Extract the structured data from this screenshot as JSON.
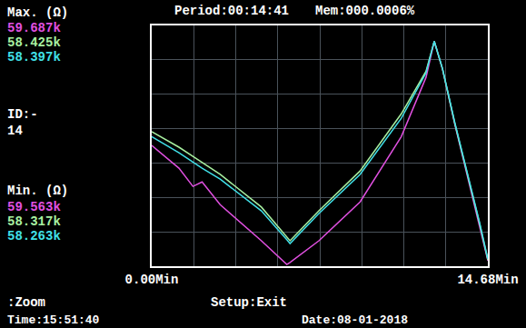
{
  "chart_data": {
    "type": "line",
    "title": "Period:00:14:41",
    "subtitle": "Mem:000.0006%",
    "max_label": "Max. (Ω)",
    "min_label": "Min. (Ω)",
    "annotations": [
      "ID:-",
      "14",
      ":Zoom",
      "Setup:Exit",
      "Time:15:51:40",
      "Date:08-01-2018"
    ],
    "x": [
      0,
      1.19,
      1.8,
      2.2,
      2.99,
      4.79,
      5.9,
      6.04,
      7.3,
      9.1,
      10.9,
      11.98,
      12.34,
      12.7,
      13.24,
      13.78,
      14.32,
      14.68
    ],
    "series": [
      {
        "color": "#e050e0",
        "max": "59.687k",
        "min": "59.563k",
        "values": [
          3.51,
          2.85,
          2.32,
          2.45,
          1.79,
          0.74,
          0.05,
          0.11,
          0.74,
          1.87,
          3.77,
          5.49,
          6.54,
          5.73,
          4.12,
          2.66,
          1.21,
          0.16
        ]
      },
      {
        "color": "#a8f0a0",
        "max": "58.425k",
        "min": "58.317k",
        "values": [
          3.91,
          3.46,
          3.19,
          3.01,
          2.67,
          1.72,
          0.84,
          0.74,
          1.61,
          2.77,
          4.43,
          5.67,
          6.54,
          5.73,
          4.14,
          2.69,
          1.24,
          0.18
        ]
      },
      {
        "color": "#40e0e8",
        "max": "58.397k",
        "min": "58.263k",
        "values": [
          3.77,
          3.3,
          3.03,
          2.85,
          2.53,
          1.61,
          0.77,
          0.66,
          1.53,
          2.67,
          4.3,
          5.62,
          6.54,
          5.75,
          4.17,
          2.72,
          1.27,
          0.21
        ]
      }
    ],
    "xlim": [
      0,
      14.68
    ],
    "xticks": [
      {
        "value": 0,
        "label": "0.00Min"
      },
      {
        "value": 14.68,
        "label": "14.68Min"
      }
    ],
    "ylim": [
      0,
      7
    ],
    "yticks": [
      0,
      1,
      2,
      3,
      4,
      5,
      6,
      7
    ],
    "grid": true,
    "tick_labels": "x"
  }
}
